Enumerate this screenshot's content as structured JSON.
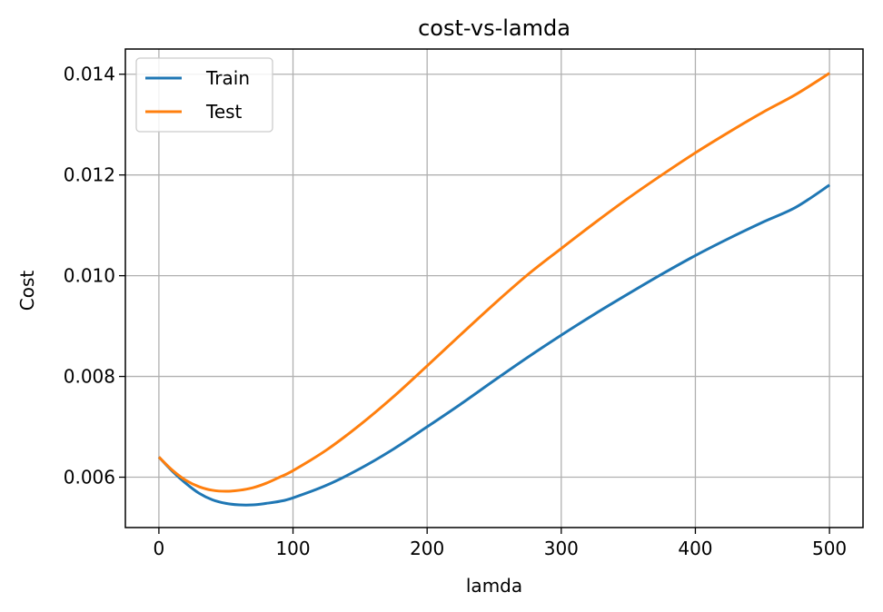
{
  "chart_data": {
    "type": "line",
    "title": "cost-vs-lamda",
    "xlabel": "lamda",
    "ylabel": "Cost",
    "xlim": [
      -25,
      525
    ],
    "ylim": [
      0.005,
      0.0145
    ],
    "xticks": [
      0,
      100,
      200,
      300,
      400,
      500
    ],
    "xtick_labels": [
      "0",
      "100",
      "200",
      "300",
      "400",
      "500"
    ],
    "yticks": [
      0.006,
      0.008,
      0.01,
      0.012,
      0.014
    ],
    "ytick_labels": [
      "0.006",
      "0.008",
      "0.010",
      "0.012",
      "0.014"
    ],
    "grid": true,
    "legend": "top-left",
    "x": [
      0,
      10,
      20,
      30,
      40,
      50,
      60,
      70,
      80,
      90,
      100,
      125,
      150,
      175,
      200,
      225,
      250,
      275,
      300,
      325,
      350,
      375,
      400,
      425,
      450,
      475,
      500
    ],
    "series": [
      {
        "name": "Train",
        "color": "#1f77b4",
        "values": [
          0.0064,
          0.00612,
          0.00588,
          0.00568,
          0.00555,
          0.00548,
          0.00545,
          0.00545,
          0.00548,
          0.00552,
          0.00559,
          0.00584,
          0.00617,
          0.00656,
          0.007,
          0.00745,
          0.00792,
          0.00838,
          0.00882,
          0.00924,
          0.00964,
          0.01003,
          0.0104,
          0.01074,
          0.01106,
          0.01136,
          0.0118
        ]
      },
      {
        "name": "Test",
        "color": "#ff7f0e",
        "values": [
          0.0064,
          0.00614,
          0.00594,
          0.00581,
          0.00574,
          0.00572,
          0.00574,
          0.00579,
          0.00588,
          0.006,
          0.00613,
          0.00654,
          0.00704,
          0.0076,
          0.00821,
          0.00883,
          0.00944,
          0.01002,
          0.01054,
          0.01105,
          0.01154,
          0.012,
          0.01244,
          0.01285,
          0.01324,
          0.0136,
          0.01402
        ]
      }
    ]
  }
}
